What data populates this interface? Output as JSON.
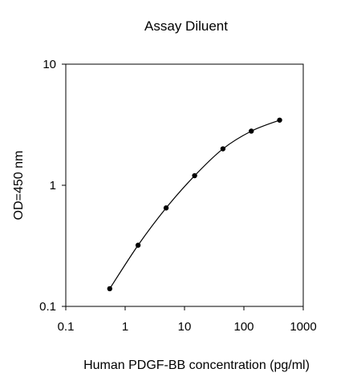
{
  "chart_data": {
    "type": "line",
    "title": "Assay Diluent",
    "xlabel": "Human PDGF-BB concentration (pg/ml)",
    "ylabel": "OD=450 nm",
    "x_scale": "log",
    "y_scale": "log",
    "xlim": [
      0.1,
      1000
    ],
    "ylim": [
      0.1,
      10
    ],
    "x_ticks": [
      "0.1",
      "1",
      "10",
      "100",
      "1000"
    ],
    "y_ticks": [
      "0.1",
      "1",
      "10"
    ],
    "grid": false,
    "legend": "none",
    "markers": "filled-circle",
    "series": [
      {
        "x": [
          0.55,
          1.65,
          4.9,
          14.8,
          44.4,
          133.3,
          400
        ],
        "y": [
          0.14,
          0.32,
          0.65,
          1.2,
          2.0,
          2.8,
          3.45
        ]
      }
    ]
  },
  "colors": {
    "line": "#000000",
    "marker": "#000000",
    "frame": "#000000",
    "background": "#ffffff"
  }
}
